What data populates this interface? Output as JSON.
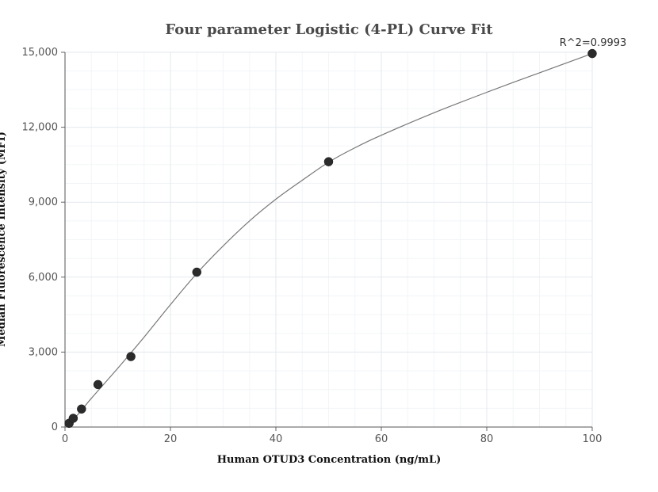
{
  "chart_data": {
    "type": "scatter",
    "title": "Four parameter Logistic (4-PL) Curve Fit",
    "xlabel": "Human OTUD3 Concentration (ng/mL)",
    "ylabel": "Median Fluorescence Intensity (MFI)",
    "xlim": [
      0,
      100
    ],
    "ylim": [
      0,
      15000
    ],
    "x_ticks": [
      0,
      20,
      40,
      60,
      80,
      100
    ],
    "y_ticks": [
      0,
      3000,
      6000,
      9000,
      12000,
      15000
    ],
    "x_tick_labels": [
      "0",
      "20",
      "40",
      "60",
      "80",
      "100"
    ],
    "y_tick_labels": [
      "0",
      "3,000",
      "6,000",
      "9,000",
      "12,000",
      "15,000"
    ],
    "grid": true,
    "annotation": "R^2=0.9993",
    "points": [
      {
        "x": 0.78,
        "y": 150
      },
      {
        "x": 1.56,
        "y": 350
      },
      {
        "x": 3.13,
        "y": 720
      },
      {
        "x": 6.25,
        "y": 1700
      },
      {
        "x": 12.5,
        "y": 2820
      },
      {
        "x": 25,
        "y": 6200
      },
      {
        "x": 50,
        "y": 10620
      },
      {
        "x": 100,
        "y": 14950
      }
    ],
    "curve": [
      {
        "x": 0,
        "y": 80
      },
      {
        "x": 2,
        "y": 400
      },
      {
        "x": 5,
        "y": 1150
      },
      {
        "x": 10,
        "y": 2350
      },
      {
        "x": 15,
        "y": 3600
      },
      {
        "x": 20,
        "y": 4900
      },
      {
        "x": 25,
        "y": 6150
      },
      {
        "x": 30,
        "y": 7250
      },
      {
        "x": 35,
        "y": 8250
      },
      {
        "x": 40,
        "y": 9120
      },
      {
        "x": 45,
        "y": 9880
      },
      {
        "x": 50,
        "y": 10600
      },
      {
        "x": 55,
        "y": 11180
      },
      {
        "x": 60,
        "y": 11680
      },
      {
        "x": 70,
        "y": 12580
      },
      {
        "x": 80,
        "y": 13400
      },
      {
        "x": 90,
        "y": 14180
      },
      {
        "x": 100,
        "y": 14950
      }
    ]
  }
}
